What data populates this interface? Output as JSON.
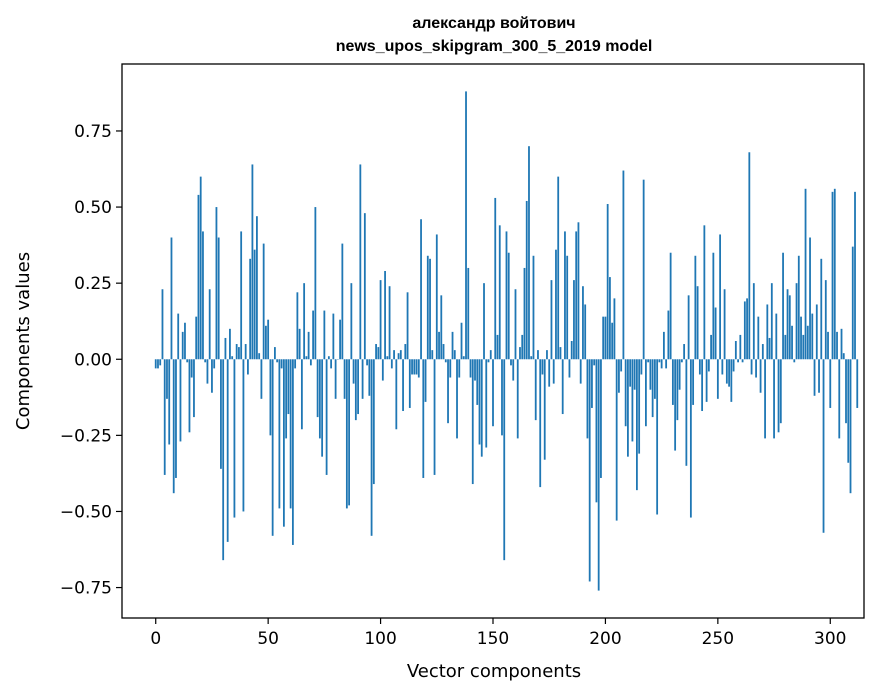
{
  "chart_data": {
    "type": "bar",
    "title": "александр войтович",
    "subtitle": "news_upos_skipgram_300_5_2019 model",
    "xlabel": "Vector components",
    "ylabel": "Components values",
    "xlim": [
      -15,
      315
    ],
    "ylim": [
      -0.85,
      0.97
    ],
    "x_ticks": [
      0,
      50,
      100,
      150,
      200,
      250,
      300
    ],
    "x_tick_labels": [
      "0",
      "50",
      "100",
      "150",
      "200",
      "250",
      "300"
    ],
    "y_ticks": [
      -0.75,
      -0.5,
      -0.25,
      0.0,
      0.25,
      0.5,
      0.75
    ],
    "y_tick_labels": [
      "−0.75",
      "−0.50",
      "−0.25",
      "0.00",
      "0.25",
      "0.50",
      "0.75"
    ],
    "grid": false,
    "bar_color": "#1f77b4",
    "values": [
      -0.03,
      -0.03,
      -0.02,
      0.23,
      -0.38,
      -0.13,
      -0.28,
      0.4,
      -0.44,
      -0.39,
      0.15,
      -0.27,
      0.09,
      0.12,
      -0.01,
      -0.24,
      -0.06,
      -0.19,
      0.14,
      0.54,
      0.6,
      0.42,
      -0.01,
      -0.08,
      0.23,
      -0.11,
      -0.03,
      0.5,
      0.4,
      -0.36,
      -0.66,
      0.07,
      -0.6,
      0.1,
      0.01,
      -0.52,
      0.05,
      0.04,
      0.42,
      -0.5,
      0.05,
      -0.05,
      0.33,
      0.64,
      0.36,
      0.47,
      0.02,
      -0.13,
      0.38,
      0.11,
      0.13,
      -0.25,
      -0.58,
      0.04,
      -0.01,
      -0.49,
      -0.03,
      -0.55,
      -0.26,
      -0.18,
      -0.49,
      -0.61,
      -0.03,
      0.22,
      0.1,
      -0.23,
      0.25,
      0.01,
      0.09,
      -0.02,
      0.16,
      0.5,
      -0.19,
      -0.26,
      -0.32,
      0.16,
      -0.38,
      0.01,
      -0.03,
      0.15,
      -0.13,
      0.0,
      0.13,
      0.38,
      -0.13,
      -0.49,
      -0.48,
      0.25,
      -0.08,
      -0.2,
      -0.18,
      0.64,
      -0.13,
      0.48,
      -0.02,
      -0.12,
      -0.58,
      -0.41,
      0.05,
      0.04,
      0.26,
      -0.07,
      0.29,
      0.01,
      0.24,
      -0.03,
      0.03,
      -0.23,
      0.02,
      0.03,
      -0.17,
      0.05,
      0.22,
      -0.16,
      -0.05,
      -0.05,
      -0.05,
      -0.06,
      0.46,
      -0.39,
      -0.14,
      0.34,
      0.33,
      0.03,
      -0.38,
      0.41,
      0.09,
      0.21,
      0.05,
      -0.01,
      -0.21,
      -0.06,
      0.09,
      0.03,
      -0.26,
      -0.06,
      0.12,
      0.01,
      0.88,
      0.3,
      -0.06,
      -0.41,
      -0.07,
      -0.15,
      -0.28,
      -0.32,
      0.25,
      -0.29,
      -0.01,
      0.03,
      -0.22,
      0.53,
      0.08,
      0.44,
      -0.25,
      -0.66,
      0.42,
      0.35,
      -0.02,
      -0.07,
      0.23,
      -0.26,
      0.04,
      0.08,
      0.3,
      0.52,
      0.7,
      0.01,
      0.34,
      -0.2,
      0.03,
      -0.42,
      -0.05,
      -0.33,
      0.03,
      -0.09,
      0.26,
      -0.08,
      0.36,
      0.6,
      0.04,
      -0.18,
      0.42,
      0.34,
      -0.06,
      0.06,
      0.26,
      0.42,
      0.45,
      -0.08,
      0.24,
      0.18,
      -0.26,
      -0.73,
      -0.16,
      -0.02,
      -0.47,
      -0.76,
      -0.39,
      0.14,
      0.14,
      0.51,
      0.27,
      0.12,
      0.2,
      -0.53,
      -0.11,
      -0.04,
      0.62,
      -0.22,
      -0.32,
      -0.09,
      -0.27,
      -0.1,
      -0.43,
      -0.31,
      -0.05,
      0.59,
      -0.22,
      -0.01,
      -0.1,
      -0.19,
      -0.13,
      -0.51,
      -0.01,
      -0.03,
      0.09,
      -0.03,
      0.16,
      0.35,
      -0.15,
      -0.3,
      -0.2,
      -0.1,
      -0.01,
      0.05,
      -0.35,
      0.21,
      -0.52,
      -0.15,
      0.34,
      0.24,
      -0.05,
      -0.17,
      0.44,
      -0.14,
      -0.04,
      0.08,
      0.35,
      0.17,
      -0.13,
      0.41,
      -0.05,
      0.23,
      -0.08,
      -0.09,
      -0.14,
      -0.04,
      0.06,
      -0.01,
      0.08,
      -0.01,
      0.19,
      0.2,
      0.68,
      -0.05,
      0.25,
      -0.06,
      0.14,
      -0.11,
      0.05,
      -0.26,
      0.18,
      0.07,
      0.25,
      -0.26,
      0.15,
      -0.24,
      -0.21,
      0.35,
      0.08,
      0.23,
      0.21,
      0.11,
      -0.01,
      0.25,
      0.34,
      0.14,
      0.08,
      0.56,
      0.11,
      0.4,
      0.15,
      -0.12,
      0.18,
      -0.11,
      0.33,
      -0.57,
      0.26,
      0.09,
      -0.16,
      0.55,
      0.56,
      0.09,
      -0.26,
      0.1,
      0.02,
      -0.21,
      -0.34,
      -0.44,
      0.37,
      0.55,
      -0.16
    ]
  }
}
